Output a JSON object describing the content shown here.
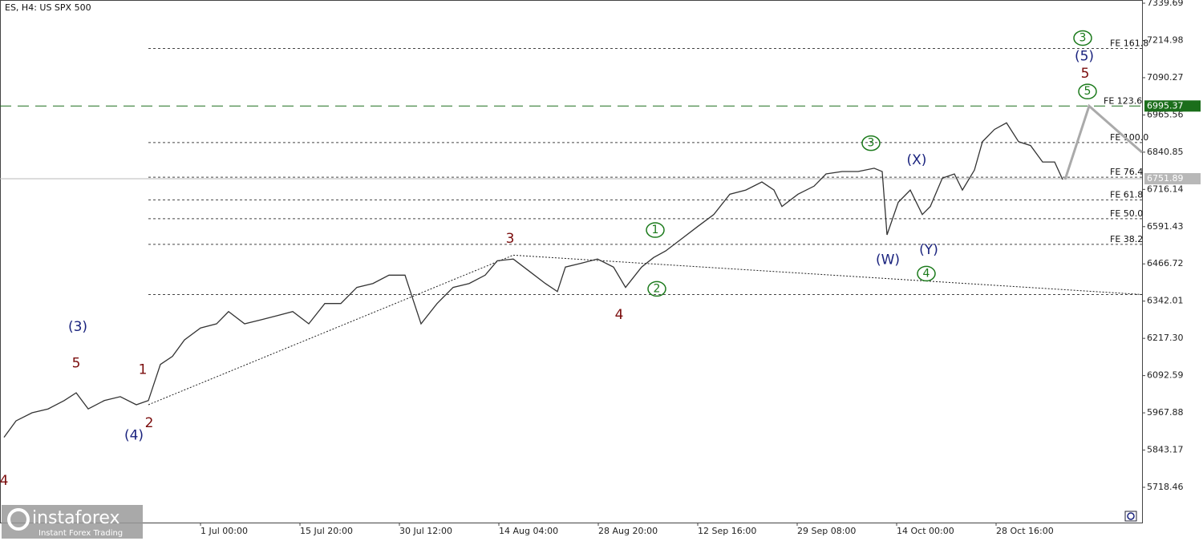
{
  "chart_data": {
    "type": "line",
    "title": "ES, H4:  US SPX 500",
    "color": "#333333",
    "x": [
      2.5,
      10,
      20,
      30,
      40,
      47.5,
      55,
      65,
      75,
      85,
      92.5,
      100,
      107.5,
      115,
      125,
      135,
      142.5,
      152.5,
      162.5,
      172.5,
      182.5,
      192.5,
      202.5,
      212.5,
      222.5,
      232.5,
      242.5,
      252.5,
      257.5,
      262.5,
      272.5,
      282.5,
      292.5,
      302.5,
      310,
      320,
      330,
      340,
      347.5,
      352.5,
      362.5,
      372.5,
      382.5,
      390,
      400,
      407.5,
      415,
      425,
      435,
      445,
      455,
      465,
      475,
      482.5,
      487.5,
      497.5,
      507.5,
      515,
      525,
      535,
      545,
      550,
      553,
      560,
      567.5,
      575,
      580,
      587.5,
      595,
      600,
      607.5,
      612.5,
      620,
      627.5,
      635,
      642.5,
      650,
      657.5,
      662.5
    ],
    "values": [
      5886,
      5941,
      5968,
      5981,
      6009,
      6035,
      5981,
      6009,
      6022,
      5995,
      6009,
      6130,
      6157,
      6212,
      6252,
      6266,
      6307,
      6266,
      6279,
      6293,
      6307,
      6266,
      6334,
      6334,
      6388,
      6401,
      6429,
      6429,
      6347,
      6266,
      6334,
      6388,
      6401,
      6429,
      6477,
      6483,
      6442,
      6401,
      6374,
      6456,
      6469,
      6483,
      6456,
      6388,
      6456,
      6488,
      6510,
      6551,
      6592,
      6632,
      6700,
      6714,
      6741,
      6714,
      6659,
      6700,
      6727,
      6768,
      6776,
      6776,
      6787,
      6776,
      6564,
      6673,
      6714,
      6632,
      6659,
      6754,
      6768,
      6714,
      6781,
      6876,
      6917,
      6939,
      6876,
      6863,
      6808,
      6808,
      6749
    ],
    "xlim": [
      0,
      712
    ],
    "xticks": [
      {
        "value": 125,
        "label": "1 Jul 00:00"
      },
      {
        "value": 187,
        "label": "15 Jul 20:00"
      },
      {
        "value": 249,
        "label": "30 Jul 12:00"
      },
      {
        "value": 311,
        "label": "14 Aug 04:00"
      },
      {
        "value": 373,
        "label": "28 Aug 20:00"
      },
      {
        "value": 435,
        "label": "12 Sep 16:00"
      },
      {
        "value": 497,
        "label": "29 Sep 08:00"
      },
      {
        "value": 559,
        "label": "14 Oct 00:00"
      },
      {
        "value": 621,
        "label": "28 Oct 16:00"
      }
    ],
    "ylim": [
      5600.4,
      7350.43
    ],
    "yticks": [
      7339.69,
      7214.98,
      7090.27,
      6965.56,
      6840.85,
      6716.14,
      6591.43,
      6466.72,
      6342.01,
      {
        "value": 6217.3,
        "label": "6217.30"
      },
      6092.59,
      5967.88,
      5843.17,
      5718.46
    ],
    "levels": [
      {
        "label": "FE 161.8",
        "value": 7188
      },
      {
        "label": "FE 100.0",
        "value": 6873
      },
      {
        "label": "FE 76.4",
        "value": 6757
      },
      {
        "label": "FE 61.8",
        "value": 6681
      },
      {
        "label": "FE 50.0",
        "value": 6618
      },
      {
        "label": "FE 38.2",
        "value": 6532
      },
      {
        "label": "",
        "value": 6364
      }
    ],
    "target": {
      "label": "FE 123.6",
      "value": 6995.37,
      "color": "#1b6e1b"
    },
    "current_price": {
      "value": 6751.89,
      "color": "#b8b8b8"
    },
    "trend_lines": [
      {
        "x": [
          92.5,
          320
        ],
        "y": [
          5995,
          6496
        ]
      },
      {
        "x": [
          320,
          712
        ],
        "y": [
          6496,
          6364
        ]
      }
    ],
    "projection": {
      "x": [
        664,
        679,
        712
      ],
      "y": [
        6749,
        6995.37,
        6840
      ]
    },
    "wave_labels": [
      {
        "text": "4",
        "x": 2.5,
        "y": 5740,
        "color": "#7a0c0c",
        "style": "plain"
      },
      {
        "text": "(3)",
        "x": 48.5,
        "y": 6255,
        "color": "#1a237e",
        "style": "plain"
      },
      {
        "text": "5",
        "x": 47.5,
        "y": 6133,
        "color": "#7a0c0c",
        "style": "plain"
      },
      {
        "text": "1",
        "x": 89,
        "y": 6112,
        "color": "#7a0c0c",
        "style": "plain"
      },
      {
        "text": "2",
        "x": 93,
        "y": 5933,
        "color": "#7a0c0c",
        "style": "plain"
      },
      {
        "text": "(4)",
        "x": 83.5,
        "y": 5892,
        "color": "#1a237e",
        "style": "plain"
      },
      {
        "text": "3",
        "x": 318,
        "y": 6551,
        "color": "#7a0c0c",
        "style": "plain"
      },
      {
        "text": "4",
        "x": 386,
        "y": 6296,
        "color": "#7a0c0c",
        "style": "plain"
      },
      {
        "text": "1",
        "x": 408.5,
        "y": 6580,
        "color": "#1b7a1b",
        "style": "circle"
      },
      {
        "text": "2",
        "x": 409.5,
        "y": 6383,
        "color": "#1b7a1b",
        "style": "circle"
      },
      {
        "text": "(W)",
        "x": 553.5,
        "y": 6480,
        "color": "#1a237e",
        "style": "plain"
      },
      {
        "text": "(X)",
        "x": 571.5,
        "y": 6814,
        "color": "#1a237e",
        "style": "plain"
      },
      {
        "text": "(Y)",
        "x": 579,
        "y": 6513,
        "color": "#1a237e",
        "style": "plain"
      },
      {
        "text": "4",
        "x": 577.5,
        "y": 6434,
        "color": "#1b7a1b",
        "style": "circle"
      },
      {
        "text": "3",
        "x": 543,
        "y": 6871,
        "color": "#1b7a1b",
        "style": "circle"
      },
      {
        "text": "3",
        "x": 675,
        "y": 7223,
        "color": "#1b7a1b",
        "style": "circle"
      },
      {
        "text": "(5)",
        "x": 676,
        "y": 7161,
        "color": "#1a237e",
        "style": "plain"
      },
      {
        "text": "5",
        "x": 676.5,
        "y": 7104,
        "color": "#7a0c0c",
        "style": "plain"
      },
      {
        "text": "5",
        "x": 678,
        "y": 7044,
        "color": "#1b7a1b",
        "style": "circle"
      }
    ]
  },
  "watermark": {
    "brand": "instaforex",
    "tagline": "Instant Forex Trading"
  }
}
